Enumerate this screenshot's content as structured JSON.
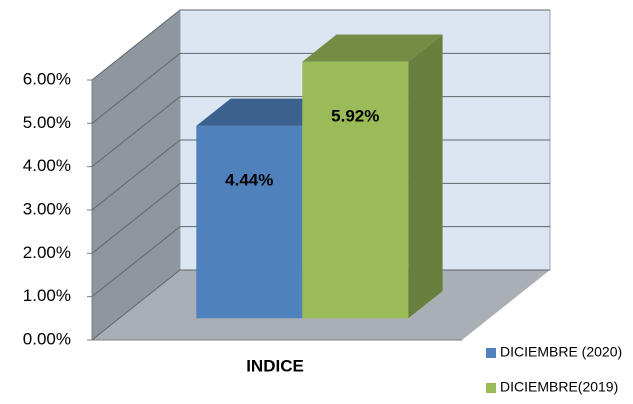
{
  "chart_data": {
    "type": "bar3d",
    "categories": [
      "INDICE"
    ],
    "series": [
      {
        "name": "DICIEMBRE (2020)",
        "color": "#4f81bd",
        "values": [
          4.44
        ],
        "value_labels": [
          "4.44%"
        ]
      },
      {
        "name": "DICIEMBRE(2019)",
        "color": "#9bbb59",
        "values": [
          5.92
        ],
        "value_labels": [
          "5.92%"
        ]
      }
    ],
    "ylim": [
      0,
      6
    ],
    "yticks": [
      {
        "value": 0,
        "label": "0.00%"
      },
      {
        "value": 1,
        "label": "1.00%"
      },
      {
        "value": 2,
        "label": "2.00%"
      },
      {
        "value": 3,
        "label": "3.00%"
      },
      {
        "value": 4,
        "label": "4.00%"
      },
      {
        "value": 5,
        "label": "5.00%"
      },
      {
        "value": 6,
        "label": "6.00%"
      }
    ],
    "grid": true,
    "legend": "bottom-right"
  }
}
